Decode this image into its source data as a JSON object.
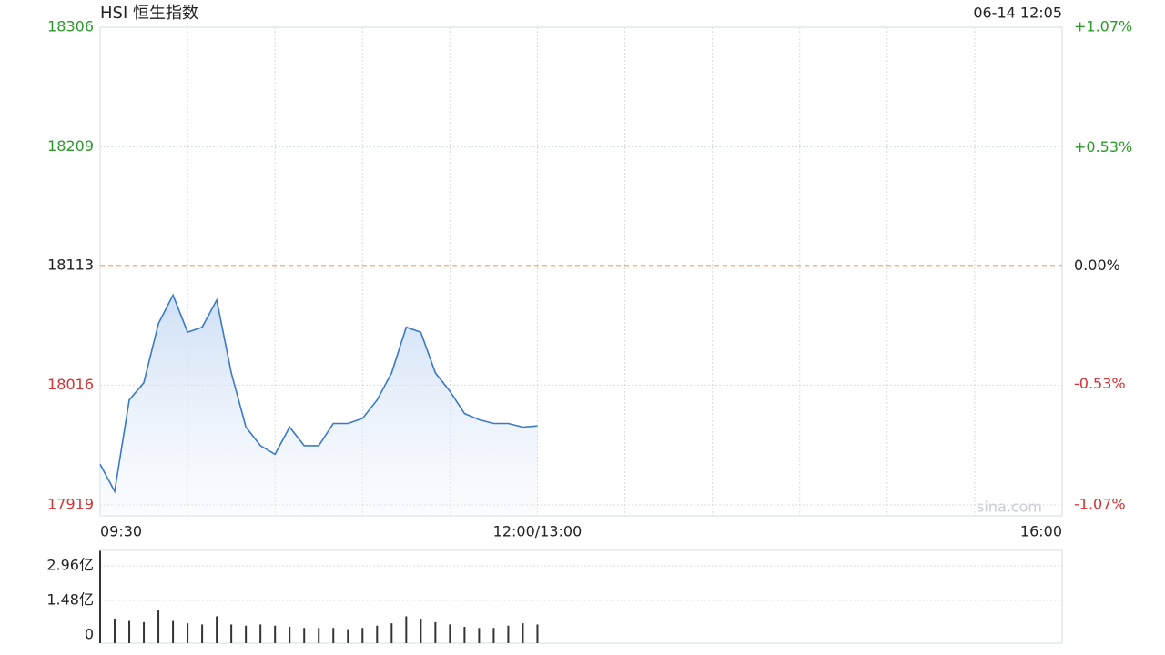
{
  "title": "HSI 恒生指数",
  "timestamp": "06-14 12:05",
  "watermark": "sina.com",
  "chart_data": [
    {
      "type": "line",
      "categories": [
        "09:30",
        null,
        null,
        null,
        null,
        null,
        null,
        null,
        null,
        null,
        null,
        null,
        null,
        null,
        null,
        null,
        null,
        null,
        null,
        null,
        null,
        null,
        null,
        null,
        null,
        null,
        null,
        null,
        null,
        null,
        "12:00/13:00",
        null,
        null,
        null,
        null,
        null,
        null,
        null,
        null,
        null,
        null,
        null,
        null,
        null,
        null,
        null,
        null,
        null,
        null,
        null,
        null,
        null,
        null,
        null,
        null,
        null,
        null,
        null,
        null,
        null,
        null,
        null,
        null,
        null,
        null,
        null,
        "16:00"
      ],
      "series": [
        {
          "name": "HSI",
          "color": "#3a78c8",
          "values": [
            17952,
            17930,
            18004,
            18018,
            18066,
            18089,
            18059,
            18063,
            18085,
            18026,
            17982,
            17967,
            17960,
            17982,
            17967,
            17967,
            17985,
            17985,
            17989,
            18004,
            18026,
            18063,
            18059,
            18026,
            18011,
            17993,
            17988,
            17985,
            17985,
            17982,
            17983,
            null,
            null,
            null,
            null,
            null,
            null,
            null,
            null,
            null,
            null,
            null,
            null,
            null,
            null,
            null,
            null,
            null,
            null,
            null,
            null,
            null,
            null,
            null,
            null,
            null,
            null,
            null,
            null,
            null,
            null,
            null,
            null,
            null,
            null,
            null,
            null
          ]
        }
      ],
      "ylim": [
        17919,
        18306
      ],
      "yticks": [
        17919,
        18016,
        18113,
        18209,
        18306
      ],
      "y2lim": [
        -1.07,
        1.07
      ],
      "y2ticks": [
        {
          "value": -1.07,
          "label": "-1.07%"
        },
        {
          "value": -0.53,
          "label": "-0.53%"
        },
        {
          "value": 0,
          "label": "0.00%"
        },
        {
          "value": 0.53,
          "label": "+0.53%"
        },
        {
          "value": 1.07,
          "label": "+1.07%"
        }
      ],
      "reference_line": 18113,
      "grid": true
    },
    {
      "type": "bar",
      "color": "#333333",
      "values": [
        3.6,
        0.7,
        0.6,
        0.55,
        1.05,
        0.6,
        0.5,
        0.45,
        0.8,
        0.45,
        0.4,
        0.45,
        0.4,
        0.35,
        0.3,
        0.3,
        0.3,
        0.25,
        0.3,
        0.4,
        0.5,
        0.8,
        0.7,
        0.55,
        0.45,
        0.35,
        0.3,
        0.3,
        0.4,
        0.5,
        0.45
      ],
      "ylim": [
        0,
        3.62
      ],
      "yticks": [
        0,
        {
          "value": 1.48,
          "label": "1.48亿"
        },
        {
          "value": 2.96,
          "label": "2.96亿"
        }
      ],
      "grid": true
    }
  ]
}
